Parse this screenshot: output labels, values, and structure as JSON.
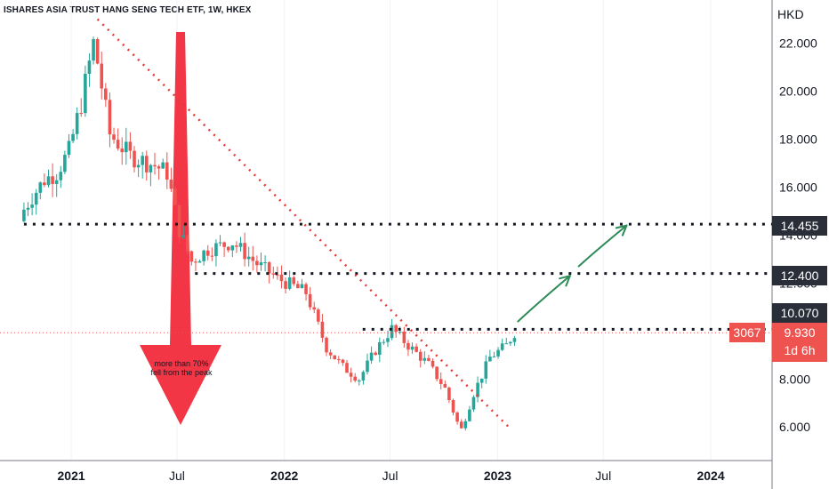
{
  "header": {
    "title": "ISHARES ASIA TRUST HANG SENG TECH ETF, 1W, HKEX",
    "currency": "HKD"
  },
  "chart_data": {
    "type": "candlestick",
    "title": "ISHARES ASIA TRUST HANG SENG TECH ETF, 1W, HKEX",
    "ylabel": "HKD",
    "ylim": [
      4.6,
      23.8
    ],
    "xlim": [
      "2020-09-01",
      "2024-04-15"
    ],
    "y_ticks": [
      "6.000",
      "8.000",
      "10.000",
      "12.000",
      "14.000",
      "16.000",
      "18.000",
      "20.000",
      "22.000"
    ],
    "x_ticks": [
      {
        "label": "2021",
        "date": "2021-01-01",
        "bold": true
      },
      {
        "label": "Jul",
        "date": "2021-07-01",
        "bold": false
      },
      {
        "label": "2022",
        "date": "2022-01-01",
        "bold": true
      },
      {
        "label": "Jul",
        "date": "2022-07-01",
        "bold": false
      },
      {
        "label": "2023",
        "date": "2023-01-01",
        "bold": true
      },
      {
        "label": "Jul",
        "date": "2023-07-01",
        "bold": false
      },
      {
        "label": "2024",
        "date": "2024-01-01",
        "bold": true
      }
    ],
    "price_path": [
      {
        "date": "2020-10-05",
        "close": 14.8
      },
      {
        "date": "2020-10-26",
        "close": 15.6
      },
      {
        "date": "2020-11-16",
        "close": 16.3
      },
      {
        "date": "2020-12-07",
        "close": 16.6
      },
      {
        "date": "2020-12-28",
        "close": 17.5
      },
      {
        "date": "2021-01-18",
        "close": 19.5
      },
      {
        "date": "2021-02-08",
        "close": 22.0
      },
      {
        "date": "2021-02-15",
        "close": 21.2
      },
      {
        "date": "2021-03-08",
        "close": 18.2
      },
      {
        "date": "2021-04-12",
        "close": 17.3
      },
      {
        "date": "2021-05-24",
        "close": 16.9
      },
      {
        "date": "2021-06-14",
        "close": 16.6
      },
      {
        "date": "2021-07-05",
        "close": 14.2
      },
      {
        "date": "2021-07-26",
        "close": 12.9
      },
      {
        "date": "2021-08-23",
        "close": 13.4
      },
      {
        "date": "2021-10-04",
        "close": 13.7
      },
      {
        "date": "2021-11-15",
        "close": 12.8
      },
      {
        "date": "2021-12-20",
        "close": 12.2
      },
      {
        "date": "2022-02-07",
        "close": 11.6
      },
      {
        "date": "2022-03-14",
        "close": 9.3
      },
      {
        "date": "2022-04-11",
        "close": 8.5
      },
      {
        "date": "2022-05-09",
        "close": 8.0
      },
      {
        "date": "2022-06-06",
        "close": 9.2
      },
      {
        "date": "2022-07-04",
        "close": 10.1
      },
      {
        "date": "2022-08-01",
        "close": 9.4
      },
      {
        "date": "2022-09-05",
        "close": 8.6
      },
      {
        "date": "2022-10-03",
        "close": 7.6
      },
      {
        "date": "2022-10-24",
        "close": 6.2
      },
      {
        "date": "2022-10-31",
        "close": 5.9
      },
      {
        "date": "2022-11-21",
        "close": 7.4
      },
      {
        "date": "2022-12-19",
        "close": 8.9
      },
      {
        "date": "2023-01-16",
        "close": 9.4
      },
      {
        "date": "2023-01-30",
        "close": 9.93
      }
    ],
    "horizontal_levels": [
      {
        "value": 14.455,
        "label": "14.455",
        "from": "2020-10-12"
      },
      {
        "value": 12.4,
        "label": "12.400",
        "from": "2021-08-01"
      },
      {
        "value": 10.07,
        "label": "10.070",
        "from": "2022-05-15"
      }
    ],
    "trendline": {
      "from": {
        "date": "2021-02-15",
        "value": 23.0
      },
      "to": {
        "date": "2023-01-20",
        "value": 6.0
      }
    },
    "projection_arrows": [
      {
        "from": {
          "date": "2023-02-05",
          "value": 10.4
        },
        "to": {
          "date": "2023-05-05",
          "value": 12.3
        }
      },
      {
        "from": {
          "date": "2023-05-20",
          "value": 12.7
        },
        "to": {
          "date": "2023-08-10",
          "value": 14.4
        }
      }
    ],
    "last_price": {
      "value": 9.93,
      "label": "9.930",
      "countdown": "1d 6h",
      "volume_tag": "3067"
    },
    "annotation": {
      "text_lines": [
        "more than 70%",
        "fell from the peak"
      ]
    },
    "colors": {
      "up": "#26a69a",
      "down": "#ef5350",
      "arrow": "#f23645",
      "trend": "#e53935",
      "projection": "#2e8b57",
      "level_tag": "#2a2e39"
    }
  }
}
